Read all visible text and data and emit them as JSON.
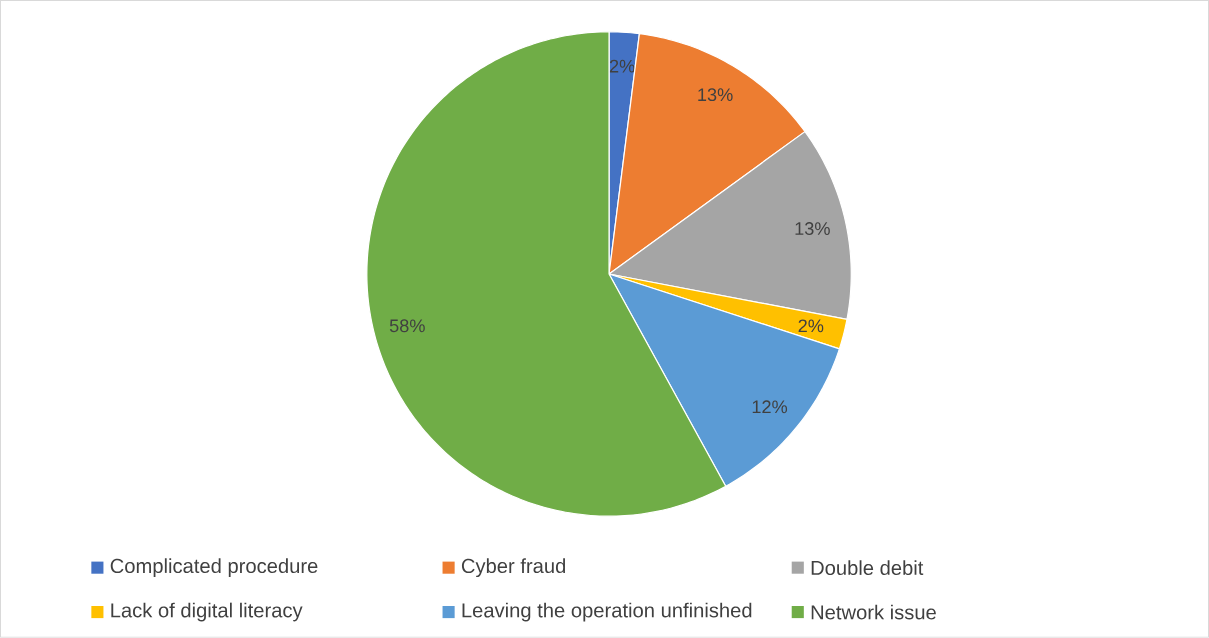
{
  "chart_data": {
    "type": "pie",
    "categories": [
      "Complicated procedure",
      "Cyber fraud",
      "Double debit",
      "Lack of digital literacy",
      "Leaving the operation unfinished",
      "Network issue"
    ],
    "values": [
      2,
      13,
      13,
      2,
      12,
      58
    ],
    "colors": [
      "#4472c4",
      "#ed7d31",
      "#a5a5a5",
      "#ffc000",
      "#5b9bd5",
      "#70ad47"
    ],
    "value_labels": [
      "2%",
      "13%",
      "13%",
      "2%",
      "12%",
      "58%"
    ],
    "legend": "bottom"
  }
}
